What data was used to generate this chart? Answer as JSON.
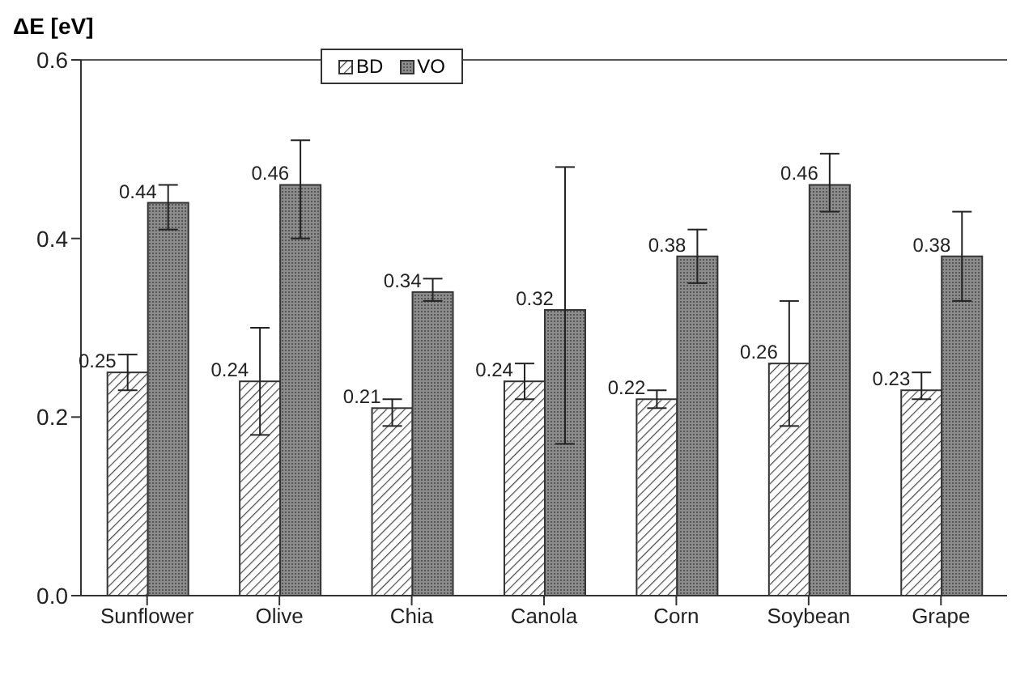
{
  "chart_data": {
    "type": "bar",
    "ylabel": "ΔE [eV]",
    "categories": [
      "Sunflower",
      "Olive",
      "Chia",
      "Canola",
      "Corn",
      "Soybean",
      "Grape"
    ],
    "series": [
      {
        "name": "BD",
        "color": "#ffffff",
        "values": [
          0.25,
          0.24,
          0.21,
          0.24,
          0.22,
          0.26,
          0.23
        ],
        "errors": [
          [
            0.23,
            0.27
          ],
          [
            0.18,
            0.3
          ],
          [
            0.19,
            0.22
          ],
          [
            0.22,
            0.26
          ],
          [
            0.21,
            0.23
          ],
          [
            0.19,
            0.33
          ],
          [
            0.22,
            0.25
          ]
        ]
      },
      {
        "name": "VO",
        "color": "#8c8c8c",
        "values": [
          0.44,
          0.46,
          0.34,
          0.32,
          0.38,
          0.46,
          0.38
        ],
        "errors": [
          [
            0.41,
            0.46
          ],
          [
            0.4,
            0.51
          ],
          [
            0.33,
            0.355
          ],
          [
            0.17,
            0.48
          ],
          [
            0.35,
            0.41
          ],
          [
            0.43,
            0.495
          ],
          [
            0.33,
            0.43
          ]
        ]
      }
    ],
    "ylim": [
      0,
      0.6
    ],
    "yticks": [
      {
        "value": 0,
        "label": "0.0"
      },
      0.2,
      0.4,
      0.6
    ],
    "data_labels": true,
    "legend": "top",
    "grid": false
  }
}
